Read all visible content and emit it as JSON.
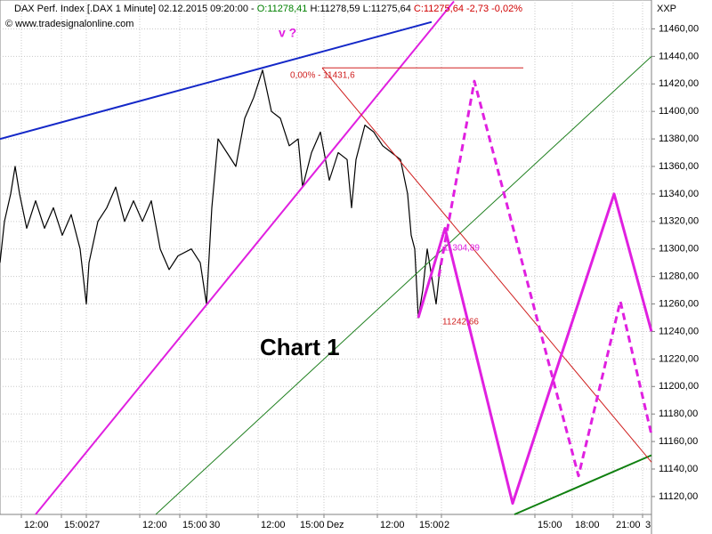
{
  "chart_data": {
    "type": "line",
    "header": [
      {
        "text": "DAX Perf. Index [.DAX  1 Minute] 02.12.2015 09:20:00 - ",
        "color": "#000000"
      },
      {
        "text": "O:11278,41",
        "color": "#008000"
      },
      {
        "text": " H:11278,59 L:11275,64 ",
        "color": "#000000"
      },
      {
        "text": "C:11275,64 -2,73 -0,02%",
        "color": "#d00000"
      }
    ],
    "copyright": "© www.tradesignalonline.com",
    "axis_label": "XXP",
    "title": "Chart 1",
    "annotations": [
      "v ?",
      "0,00% - 11431,6",
      "11304,89",
      "11242,66"
    ],
    "ylim": [
      11107,
      11481
    ],
    "yticks": [
      {
        "value": 11120,
        "label": "11120,00"
      },
      {
        "value": 11140,
        "label": "11140,00"
      },
      {
        "value": 11160,
        "label": "11160,00"
      },
      {
        "value": 11180,
        "label": "11180,00"
      },
      {
        "value": 11200,
        "label": "11200,00"
      },
      {
        "value": 11220,
        "label": "11220,00"
      },
      {
        "value": 11240,
        "label": "11240,00"
      },
      {
        "value": 11260,
        "label": "11260,00"
      },
      {
        "value": 11280,
        "label": "11280,00"
      },
      {
        "value": 11300,
        "label": "11300,00"
      },
      {
        "value": 11320,
        "label": "11320,00"
      },
      {
        "value": 11340,
        "label": "11340,00"
      },
      {
        "value": 11360,
        "label": "11360,00"
      },
      {
        "value": 11380,
        "label": "11380,00"
      },
      {
        "value": 11400,
        "label": "11400,00"
      },
      {
        "value": 11420,
        "label": "11420,00"
      },
      {
        "value": 11440,
        "label": "11440,00"
      },
      {
        "value": 11460,
        "label": "11460,00"
      }
    ],
    "xlim": [
      0,
      732
    ],
    "xticks": [
      {
        "value": 24,
        "label": "12:00"
      },
      {
        "value": 69,
        "label": "15:00"
      },
      {
        "value": 97,
        "label": "27"
      },
      {
        "value": 157,
        "label": "12:00"
      },
      {
        "value": 202,
        "label": "15:00"
      },
      {
        "value": 232,
        "label": "30"
      },
      {
        "value": 290,
        "label": "12:00"
      },
      {
        "value": 334,
        "label": "15:00"
      },
      {
        "value": 364,
        "label": "Dez"
      },
      {
        "value": 424,
        "label": "12:00"
      },
      {
        "value": 468,
        "label": "15:00"
      },
      {
        "value": 496,
        "label": "2"
      },
      {
        "value": 601,
        "label": "15:00"
      },
      {
        "value": 643,
        "label": "18:00"
      },
      {
        "value": 689,
        "label": "21:00"
      },
      {
        "value": 722,
        "label": "3"
      }
    ],
    "grid": true,
    "series": [
      {
        "color": "#000000",
        "width": 1.2,
        "dash": false,
        "x": [
          0,
          5,
          12,
          17,
          22,
          30,
          40,
          50,
          60,
          70,
          80,
          90,
          97,
          100,
          110,
          120,
          130,
          140,
          150,
          160,
          170,
          180,
          190,
          200,
          215,
          225,
          232,
          238,
          245,
          255,
          265,
          275,
          285,
          295,
          305,
          315,
          325,
          335,
          340,
          350,
          360,
          370,
          380,
          390,
          395,
          400,
          410,
          420,
          430,
          440,
          450,
          458,
          462,
          466,
          470,
          475,
          480,
          485,
          490,
          495
        ],
        "values": [
          11290,
          11320,
          11340,
          11360,
          11340,
          11315,
          11335,
          11315,
          11330,
          11310,
          11325,
          11300,
          11260,
          11290,
          11320,
          11330,
          11345,
          11320,
          11335,
          11320,
          11335,
          11300,
          11285,
          11295,
          11300,
          11290,
          11260,
          11330,
          11380,
          11370,
          11360,
          11395,
          11410,
          11430,
          11400,
          11395,
          11375,
          11380,
          11345,
          11370,
          11385,
          11350,
          11370,
          11365,
          11330,
          11365,
          11390,
          11385,
          11375,
          11370,
          11365,
          11340,
          11310,
          11300,
          11250,
          11270,
          11300,
          11280,
          11260,
          11290
        ]
      },
      {
        "color": "#1428c8",
        "width": 2,
        "dash": false,
        "x": [
          0,
          485
        ],
        "values": [
          11380,
          11465
        ]
      },
      {
        "color": "#e020e0",
        "width": 2,
        "dash": false,
        "x": [
          40,
          510
        ],
        "values": [
          11107,
          11480
        ]
      },
      {
        "color": "#208020",
        "width": 1,
        "dash": false,
        "x": [
          175,
          732
        ],
        "values": [
          11107,
          11440
        ]
      },
      {
        "color": "#108010",
        "width": 2,
        "dash": false,
        "x": [
          578,
          732
        ],
        "values": [
          11107,
          11150
        ]
      },
      {
        "color": "#d02020",
        "width": 1,
        "dash": false,
        "x": [
          362,
          588
        ],
        "values": [
          11431.6,
          11431.6
        ]
      },
      {
        "color": "#d02020",
        "width": 1,
        "dash": false,
        "x": [
          362,
          732
        ],
        "values": [
          11431.6,
          11145
        ]
      },
      {
        "color": "#e020e0",
        "width": 3,
        "dash": false,
        "x": [
          470,
          500,
          576,
          690,
          732
        ],
        "values": [
          11250,
          11315,
          11115,
          11340,
          11240
        ]
      },
      {
        "color": "#e020e0",
        "width": 3,
        "dash": true,
        "x": [
          493,
          533,
          650,
          697,
          732
        ],
        "values": [
          11280,
          11422,
          11135,
          11262,
          11165
        ]
      }
    ]
  }
}
